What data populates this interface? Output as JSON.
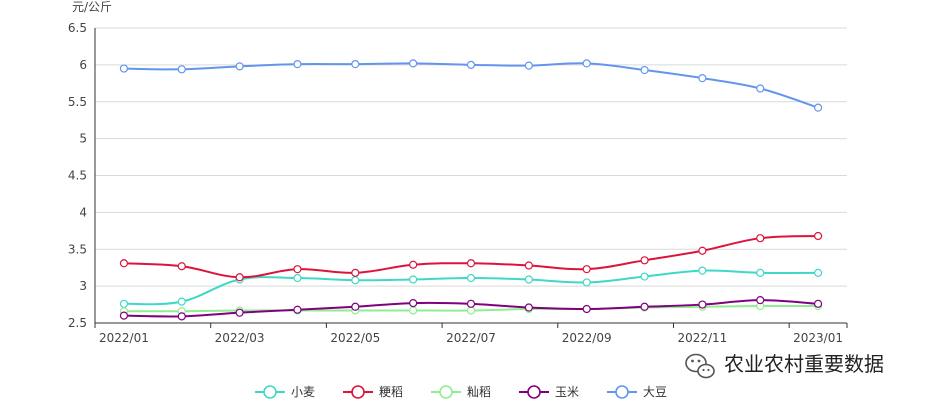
{
  "chart_data": {
    "type": "line",
    "ylabel": "元/公斤",
    "xlabel": "",
    "ylim": [
      2.5,
      6.5
    ],
    "yticks": [
      "2.5",
      "3",
      "3.5",
      "4",
      "4.5",
      "5",
      "5.5",
      "6",
      "6.5"
    ],
    "grid": true,
    "legend_position": "bottom-center",
    "x": [
      "2022/01",
      "2022/02",
      "2022/03",
      "2022/04",
      "2022/05",
      "2022/06",
      "2022/07",
      "2022/08",
      "2022/09",
      "2022/10",
      "2022/11",
      "2022/12",
      "2023/01"
    ],
    "xtick_labels": [
      "2022/01",
      "2022/03",
      "2022/05",
      "2022/07",
      "2022/09",
      "2022/11",
      "2023/01"
    ],
    "series": [
      {
        "name": "小麦",
        "color": "#3fd8c8",
        "values": [
          2.76,
          2.79,
          3.09,
          3.11,
          3.08,
          3.09,
          3.11,
          3.09,
          3.05,
          3.13,
          3.21,
          3.18,
          3.18
        ]
      },
      {
        "name": "粳稻",
        "color": "#dc143c",
        "values": [
          3.31,
          3.27,
          3.12,
          3.23,
          3.18,
          3.29,
          3.31,
          3.28,
          3.23,
          3.35,
          3.48,
          3.65,
          3.68
        ]
      },
      {
        "name": "籼稻",
        "color": "#90ee90",
        "values": [
          2.66,
          2.66,
          2.67,
          2.67,
          2.67,
          2.67,
          2.67,
          2.69,
          2.69,
          2.71,
          2.72,
          2.73,
          2.73
        ]
      },
      {
        "name": "玉米",
        "color": "#800080",
        "values": [
          2.6,
          2.59,
          2.64,
          2.68,
          2.72,
          2.77,
          2.76,
          2.71,
          2.69,
          2.72,
          2.75,
          2.81,
          2.76
        ]
      },
      {
        "name": "大豆",
        "color": "#6495ed",
        "values": [
          5.95,
          5.94,
          5.98,
          6.01,
          6.01,
          6.02,
          6.0,
          5.99,
          6.02,
          5.93,
          5.82,
          5.68,
          5.42
        ]
      }
    ]
  },
  "watermark": {
    "text": "农业农村重要数据",
    "icon": "wechat-icon"
  }
}
